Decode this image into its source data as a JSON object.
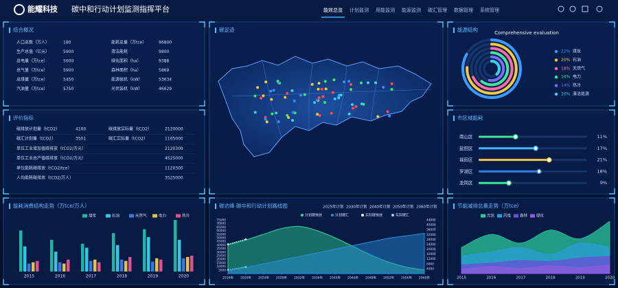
{
  "header": {
    "logo": "能耀科技",
    "title": "碳中和行动计划监测指挥平台",
    "nav": [
      "能效总览",
      "计划监测",
      "用能监测",
      "能源监测",
      "碳汇管理",
      "数据管理",
      "系统管理"
    ]
  },
  "overview": {
    "title": "综合概况",
    "rows": [
      [
        "人口总数（万人）",
        180,
        "能耗总量（万tce）",
        96800
      ],
      [
        "生产总值（亿元）",
        5900,
        "清洁能耗",
        9800
      ],
      [
        "总电量（万tce）",
        5600,
        "绿化面积（ha）",
        9388
      ],
      [
        "总气量（万tce）",
        5900,
        "森林面积（ha）",
        5869
      ],
      [
        "总煤量（万tce）",
        5450,
        "能源装机（kW）",
        53634
      ],
      [
        "汽油量（万tce）",
        5750,
        "光伏装机（kW）",
        46629
      ]
    ]
  },
  "indicators": {
    "title": "评价指标",
    "rows": [
      [
        "碳排放计划量（tCO2）",
        4100,
        "碳排放实际量（tCO2）",
        2120000
      ],
      [
        "碳汇计划量（tCO2）",
        3501,
        "碳汇实际量（tCO2）",
        1105000
      ],
      [
        "单位工业增加值碳排放（tCO2/万元）",
        2120300
      ],
      [
        "单位工业总产值碳排放（tCO2/万元）",
        4525000
      ],
      [
        "单位能耗碳排放（tCO2/tce）",
        1120300
      ],
      [
        "人均能耗碳排放（tCO2/万人）",
        3525000
      ]
    ]
  },
  "map": {
    "title": "碳足迹"
  },
  "chart_data": [
    {
      "type": "bar",
      "title": "能耗消费结构走势（万tce/万人）",
      "categories": [
        "2015",
        "2016",
        "2017",
        "2018",
        "2019",
        "2020"
      ],
      "series": [
        {
          "name": "煤炭",
          "color": "#1fb5a6",
          "values": [
            62,
            48,
            42,
            58,
            64,
            78
          ]
        },
        {
          "name": "石油",
          "color": "#35c6e6",
          "values": [
            38,
            30,
            36,
            40,
            52,
            48
          ]
        },
        {
          "name": "天然气",
          "color": "#3a78e0",
          "values": [
            12,
            14,
            16,
            18,
            15,
            20
          ]
        },
        {
          "name": "电力",
          "color": "#e3c14b",
          "values": [
            14,
            12,
            18,
            16,
            20,
            22
          ]
        },
        {
          "name": "热冷",
          "color": "#e0508f",
          "values": [
            16,
            18,
            14,
            22,
            18,
            24
          ]
        }
      ]
    },
    {
      "type": "line",
      "title": "碳达峰 碳中和行动计划路线图",
      "milestones": [
        "2025年计划",
        "2030年计划",
        "2040年计划",
        "2050年计划",
        "2060年计划"
      ],
      "x": [
        2016,
        2020,
        2024,
        2028,
        2032,
        2036,
        2040,
        2044,
        2048,
        2052,
        2056,
        2060
      ],
      "xlim": [
        2016,
        2060
      ],
      "xticks": [
        {
          "value": 2016,
          "label": "2016年"
        },
        {
          "value": 2020,
          "label": "2020年"
        },
        {
          "value": 2024,
          "label": "2024年"
        },
        {
          "value": 2028,
          "label": "2028年"
        },
        {
          "value": 2032,
          "label": "2032年"
        },
        {
          "value": 2036,
          "label": "2036年"
        },
        {
          "value": 2040,
          "label": "2040年"
        },
        {
          "value": 2044,
          "label": "2044年"
        },
        {
          "value": 2048,
          "label": "2048年"
        },
        {
          "value": 2052,
          "label": "2052年"
        },
        {
          "value": 2056,
          "label": "2056年"
        },
        {
          "value": 2060,
          "label": "2060年"
        }
      ],
      "ylim": [
        0,
        75000
      ],
      "yticks": [
        5000,
        10000,
        15000,
        20000,
        25000,
        30000,
        35000,
        40000,
        45000,
        50000,
        55000,
        60000,
        65000,
        70000,
        75000
      ],
      "y2lim": [
        0,
        44000
      ],
      "y2ticks": [
        4000,
        8000,
        12000,
        16000,
        20000,
        24000,
        28000,
        32000,
        36000,
        40000,
        44000
      ],
      "series": [
        {
          "name": "计划碳排放",
          "color": "#2fd89a",
          "fill": true,
          "values": [
            40000,
            47000,
            55000,
            63000,
            66000,
            60000,
            50000,
            38000,
            26000,
            16000,
            9000,
            5000
          ]
        },
        {
          "name": "计划碳汇",
          "color": "#2a8fe0",
          "fill": true,
          "axis": "y2",
          "values": [
            2000,
            5000,
            8000,
            11000,
            14000,
            17000,
            20000,
            23000,
            26000,
            29000,
            31000,
            33000
          ]
        },
        {
          "name": "实际碳排放",
          "color": "#e8fff6",
          "fill": false,
          "values": [
            41000,
            48000,
            null,
            null,
            null,
            null,
            null,
            null,
            null,
            null,
            null,
            null
          ]
        },
        {
          "name": "实际碳汇",
          "color": "#7fd8ff",
          "fill": false,
          "axis": "y2",
          "values": [
            3000,
            5500,
            null,
            null,
            null,
            null,
            null,
            null,
            null,
            null,
            null,
            null
          ]
        }
      ]
    },
    {
      "type": "radial",
      "title": "能源结构",
      "subtitle": "Comprehensive evaluation",
      "categories": [
        "煤炭",
        "石油",
        "天然气",
        "电力",
        "热冷",
        "清洁能源"
      ],
      "values": [
        22,
        20,
        18,
        16,
        14,
        10
      ],
      "value_labels": [
        "22%",
        "20%",
        "18%",
        "16%",
        "14%",
        "10%"
      ],
      "colors": [
        "#3b9cff",
        "#f5c842",
        "#ff6aa8",
        "#3ee89a",
        "#7b6cff",
        "#38d3e8"
      ]
    },
    {
      "type": "hbar",
      "title": "市区域能耗",
      "categories": [
        "南山区",
        "盐田区",
        "福田区",
        "罗湖区",
        "龙岗区"
      ],
      "values": [
        11,
        17,
        21,
        18,
        9
      ],
      "value_labels": [
        "11%",
        "17%",
        "21%",
        "18%",
        "9%"
      ],
      "colors": [
        "#3ee89a",
        "#3fb5ff",
        "#f5c842",
        "#2f7fe0",
        "#3ee89a"
      ]
    },
    {
      "type": "area",
      "title": "节能减排总量走势（万tce）",
      "categories": [
        "2015",
        "2016",
        "2017",
        "2018",
        "2019",
        "2020"
      ],
      "series": [
        {
          "name": "光伏",
          "color": "#2cc79a",
          "values": [
            30,
            45,
            35,
            50,
            40,
            60
          ]
        },
        {
          "name": "风电",
          "color": "#2a9fd6",
          "values": [
            20,
            25,
            30,
            22,
            35,
            30
          ]
        },
        {
          "name": "森林",
          "color": "#6a4fd8",
          "values": [
            10,
            12,
            15,
            14,
            18,
            20
          ]
        },
        {
          "name": "绿化",
          "color": "#8f5be0",
          "values": [
            5,
            8,
            6,
            9,
            7,
            10
          ]
        }
      ]
    }
  ]
}
